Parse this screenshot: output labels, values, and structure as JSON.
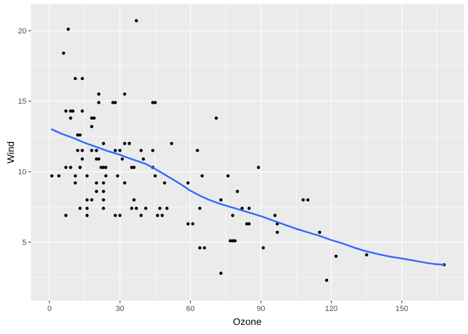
{
  "figure": {
    "background": "#FFFFFF",
    "panel_background": "#EBEBEB",
    "grid_color": "#FFFFFF",
    "point_color": "#000000",
    "smooth_color": "#3366FF",
    "axis_text_color": "#4D4D4D",
    "tick_color": "#333333"
  },
  "chart_data": {
    "type": "scatter",
    "title": "",
    "xlabel": "Ozone",
    "ylabel": "Wind",
    "xlim": [
      -7.86,
      176.54
    ],
    "ylim": [
      0.86,
      21.9
    ],
    "x_ticks": [
      0,
      30,
      60,
      90,
      120,
      150
    ],
    "y_ticks": [
      5,
      10,
      15,
      20
    ],
    "x_minor_ticks": [
      15,
      45,
      75,
      105,
      135,
      165
    ],
    "y_minor_ticks": [
      2.5,
      7.5,
      12.5,
      17.5
    ],
    "grid": true,
    "legend_position": "none",
    "series": [
      {
        "name": "points",
        "geom": "point",
        "points": [
          [
            41,
            7.4
          ],
          [
            36,
            8
          ],
          [
            12,
            12.6
          ],
          [
            18,
            11.5
          ],
          [
            28,
            14.9
          ],
          [
            23,
            8.6
          ],
          [
            19,
            13.8
          ],
          [
            8,
            20.1
          ],
          [
            7,
            6.9
          ],
          [
            16,
            9.7
          ],
          [
            11,
            9.2
          ],
          [
            14,
            10.9
          ],
          [
            18,
            13.2
          ],
          [
            14,
            11.5
          ],
          [
            34,
            12
          ],
          [
            6,
            18.4
          ],
          [
            30,
            11.5
          ],
          [
            11,
            9.7
          ],
          [
            1,
            9.7
          ],
          [
            11,
            16.6
          ],
          [
            4,
            9.7
          ],
          [
            32,
            12
          ],
          [
            23,
            12
          ],
          [
            45,
            14.9
          ],
          [
            115,
            5.7
          ],
          [
            37,
            7.4
          ],
          [
            29,
            9.7
          ],
          [
            71,
            13.8
          ],
          [
            39,
            11.5
          ],
          [
            23,
            8
          ],
          [
            21,
            14.9
          ],
          [
            37,
            20.7
          ],
          [
            20,
            9.2
          ],
          [
            12,
            11.5
          ],
          [
            13,
            10.3
          ],
          [
            135,
            4.1
          ],
          [
            49,
            9.2
          ],
          [
            32,
            9.2
          ],
          [
            64,
            4.6
          ],
          [
            40,
            10.9
          ],
          [
            77,
            5.1
          ],
          [
            97,
            6.3
          ],
          [
            97,
            5.7
          ],
          [
            85,
            7.4
          ],
          [
            10,
            14.3
          ],
          [
            27,
            14.9
          ],
          [
            7,
            14.3
          ],
          [
            48,
            6.9
          ],
          [
            35,
            10.3
          ],
          [
            61,
            6.3
          ],
          [
            79,
            5.1
          ],
          [
            63,
            11.5
          ],
          [
            16,
            6.9
          ],
          [
            80,
            8.6
          ],
          [
            108,
            8
          ],
          [
            20,
            8.6
          ],
          [
            52,
            12
          ],
          [
            82,
            7.4
          ],
          [
            50,
            7.4
          ],
          [
            64,
            7.4
          ],
          [
            59,
            9.2
          ],
          [
            39,
            6.9
          ],
          [
            9,
            13.8
          ],
          [
            16,
            7.4
          ],
          [
            78,
            6.9
          ],
          [
            35,
            7.4
          ],
          [
            66,
            4.6
          ],
          [
            122,
            4
          ],
          [
            89,
            10.3
          ],
          [
            110,
            8
          ],
          [
            44,
            11.5
          ],
          [
            28,
            11.5
          ],
          [
            65,
            9.7
          ],
          [
            22,
            10.3
          ],
          [
            59,
            6.3
          ],
          [
            23,
            7.4
          ],
          [
            31,
            10.9
          ],
          [
            44,
            10.3
          ],
          [
            21,
            15.5
          ],
          [
            9,
            14.3
          ],
          [
            45,
            9.7
          ],
          [
            168,
            3.4
          ],
          [
            73,
            8
          ],
          [
            76,
            9.7
          ],
          [
            118,
            2.3
          ],
          [
            84,
            6.3
          ],
          [
            85,
            6.3
          ],
          [
            96,
            6.9
          ],
          [
            78,
            5.1
          ],
          [
            73,
            2.8
          ],
          [
            91,
            4.6
          ],
          [
            47,
            7.4
          ],
          [
            32,
            15.5
          ],
          [
            20,
            10.9
          ],
          [
            23,
            10.3
          ],
          [
            21,
            10.9
          ],
          [
            24,
            9.7
          ],
          [
            44,
            14.9
          ],
          [
            21,
            15.5
          ],
          [
            28,
            6.9
          ],
          [
            9,
            10.3
          ],
          [
            13,
            7.4
          ],
          [
            46,
            6.9
          ],
          [
            18,
            13.8
          ],
          [
            13,
            10.3
          ],
          [
            24,
            10.3
          ],
          [
            16,
            8
          ],
          [
            13,
            12.6
          ],
          [
            23,
            9.2
          ],
          [
            36,
            10.3
          ],
          [
            7,
            10.3
          ],
          [
            14,
            16.6
          ],
          [
            30,
            6.9
          ],
          [
            14,
            14.3
          ],
          [
            18,
            8
          ],
          [
            20,
            11.5
          ]
        ]
      },
      {
        "name": "loess-smooth",
        "geom": "line",
        "color": "#3366FF",
        "points": [
          [
            1,
            13.0
          ],
          [
            5,
            12.7
          ],
          [
            10,
            12.4
          ],
          [
            15,
            12.05
          ],
          [
            20,
            11.75
          ],
          [
            25,
            11.45
          ],
          [
            30,
            11.2
          ],
          [
            34,
            10.95
          ],
          [
            38,
            10.72
          ],
          [
            41,
            10.55
          ],
          [
            44,
            10.28
          ],
          [
            47,
            10.0
          ],
          [
            50,
            9.7
          ],
          [
            53,
            9.4
          ],
          [
            56,
            9.1
          ],
          [
            60,
            8.65
          ],
          [
            64,
            8.3
          ],
          [
            68,
            8.0
          ],
          [
            72,
            7.75
          ],
          [
            76,
            7.55
          ],
          [
            80,
            7.35
          ],
          [
            85,
            7.1
          ],
          [
            90,
            6.85
          ],
          [
            95,
            6.55
          ],
          [
            100,
            6.25
          ],
          [
            105,
            5.95
          ],
          [
            110,
            5.7
          ],
          [
            115,
            5.45
          ],
          [
            120,
            5.15
          ],
          [
            125,
            4.9
          ],
          [
            130,
            4.6
          ],
          [
            135,
            4.35
          ],
          [
            140,
            4.15
          ],
          [
            145,
            3.98
          ],
          [
            150,
            3.85
          ],
          [
            155,
            3.7
          ],
          [
            160,
            3.55
          ],
          [
            164,
            3.45
          ],
          [
            168,
            3.4
          ]
        ]
      }
    ]
  }
}
